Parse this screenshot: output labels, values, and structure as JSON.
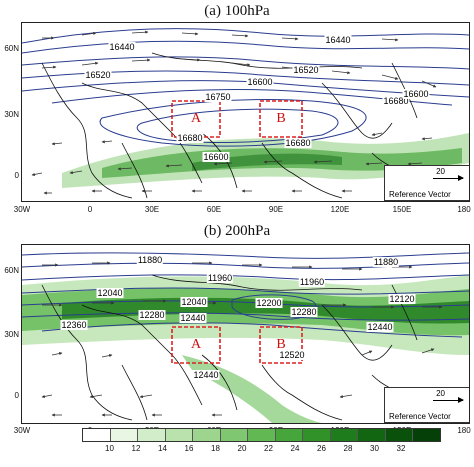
{
  "panels": [
    {
      "title": "(a)  100hPa",
      "lat_labels": [
        "60N",
        "30N",
        "0"
      ],
      "lon_labels": [
        "30W",
        "0",
        "30E",
        "60E",
        "90E",
        "120E",
        "150E",
        "180"
      ],
      "contour_labels": [
        "16440",
        "16520",
        "16440",
        "16520",
        "16600",
        "16750",
        "16680",
        "16680",
        "16600",
        "16680",
        "16600"
      ],
      "regions": [
        "A",
        "B"
      ],
      "reference": {
        "value": "20",
        "text": "Reference Vector"
      }
    },
    {
      "title": "(b)  200hPa",
      "lat_labels": [
        "60N",
        "30N",
        "0"
      ],
      "lon_labels": [
        "30W",
        "0",
        "30E",
        "60E",
        "90E",
        "120E",
        "150E",
        "180"
      ],
      "contour_labels": [
        "11880",
        "11960",
        "11960",
        "11880",
        "12040",
        "12040",
        "12200",
        "12120",
        "12360",
        "12280",
        "12280",
        "12440",
        "12440",
        "12520",
        "12440"
      ],
      "regions": [
        "A",
        "B"
      ],
      "reference": {
        "value": "20",
        "text": "Reference Vector"
      }
    }
  ],
  "colorbar": {
    "ticks": [
      "10",
      "12",
      "14",
      "16",
      "18",
      "20",
      "22",
      "24",
      "26",
      "28",
      "30",
      "32"
    ],
    "colors": [
      "#ffffff",
      "#e9f6e4",
      "#d2edc9",
      "#b9e2ad",
      "#9dd58f",
      "#7fc771",
      "#62b853",
      "#47a63b",
      "#31922a",
      "#1f7c1d",
      "#126612",
      "#0a520c",
      "#054008"
    ]
  },
  "colors": {
    "contour": "#2a3d8f",
    "region_box": "#dd2222",
    "coast": "#111111"
  }
}
